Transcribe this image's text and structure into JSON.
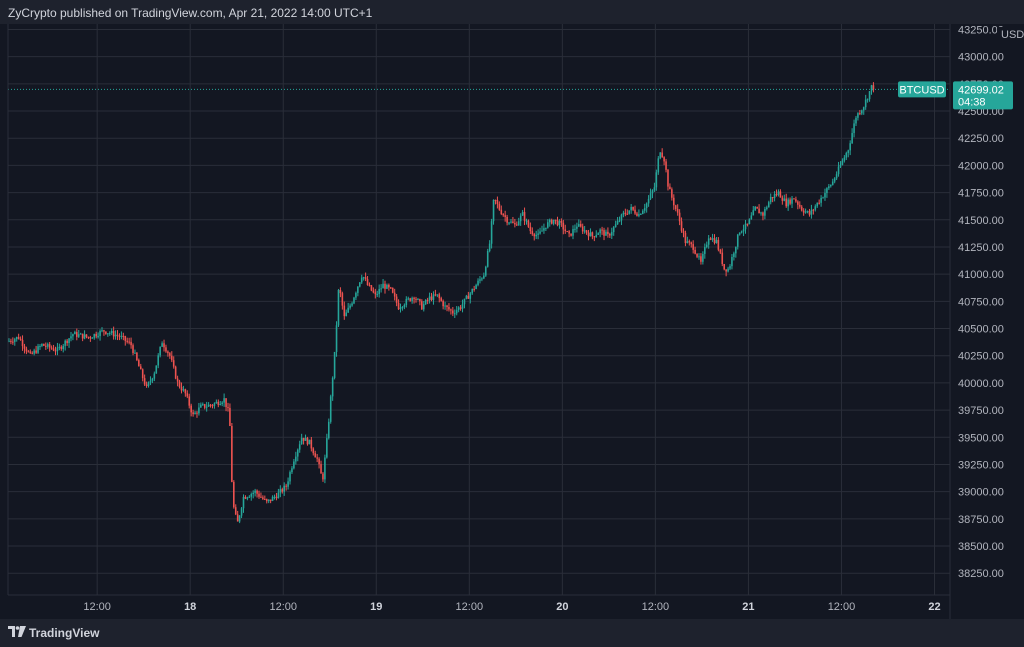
{
  "header": {
    "text": "ZyCrypto published on TradingView.com, Apr 21, 2022 14:00 UTC+1"
  },
  "footer": {
    "brand": "TradingView"
  },
  "colors": {
    "background": "#131722",
    "grid": "#2a2e39",
    "up": "#26a69a",
    "down": "#ef5350",
    "price_label_bg": "#26a69a",
    "axis_text": "#b2b5be"
  },
  "chart_data": {
    "type": "candlestick",
    "symbol": "BTCUSD",
    "currency": "USD",
    "last_price": "42699.02",
    "countdown": "04:38",
    "ylim": [
      38050,
      43300
    ],
    "y_ticks": [
      "38250.00",
      "38500.00",
      "38750.00",
      "39000.00",
      "39250.00",
      "39500.00",
      "39750.00",
      "40000.00",
      "40250.00",
      "40500.00",
      "40750.00",
      "41000.00",
      "41250.00",
      "41500.00",
      "41750.00",
      "42000.00",
      "42250.00",
      "42500.00",
      "42750.00",
      "43000.00",
      "43250.00"
    ],
    "x_ticks": [
      {
        "label": "12:00",
        "hour": 12,
        "bold": false
      },
      {
        "label": "18",
        "hour": 24,
        "bold": true
      },
      {
        "label": "12:00",
        "hour": 36,
        "bold": false
      },
      {
        "label": "19",
        "hour": 48,
        "bold": true
      },
      {
        "label": "12:00",
        "hour": 60,
        "bold": false
      },
      {
        "label": "20",
        "hour": 72,
        "bold": true
      },
      {
        "label": "12:00",
        "hour": 84,
        "bold": false
      },
      {
        "label": "21",
        "hour": 96,
        "bold": true
      },
      {
        "label": "12:00",
        "hour": 108,
        "bold": false
      },
      {
        "label": "22",
        "hour": 120,
        "bold": true
      }
    ],
    "xlim_hours": [
      0.5,
      122
    ],
    "price_path": [
      [
        0.5,
        40380
      ],
      [
        2,
        40420
      ],
      [
        3.5,
        40250
      ],
      [
        5,
        40350
      ],
      [
        7,
        40300
      ],
      [
        9,
        40450
      ],
      [
        11,
        40420
      ],
      [
        13,
        40480
      ],
      [
        15,
        40430
      ],
      [
        16.5,
        40350
      ],
      [
        17.5,
        40150
      ],
      [
        18.5,
        39950
      ],
      [
        19.5,
        40100
      ],
      [
        20.5,
        40380
      ],
      [
        21.5,
        40250
      ],
      [
        22.5,
        40000
      ],
      [
        23.5,
        39900
      ],
      [
        24.5,
        39700
      ],
      [
        25.5,
        39780
      ],
      [
        27,
        39800
      ],
      [
        28.5,
        39850
      ],
      [
        29.2,
        39700
      ],
      [
        29.6,
        38900
      ],
      [
        30.2,
        38700
      ],
      [
        31,
        38950
      ],
      [
        32.5,
        39000
      ],
      [
        34,
        38900
      ],
      [
        35.5,
        38980
      ],
      [
        36.5,
        39050
      ],
      [
        37.5,
        39300
      ],
      [
        38.5,
        39500
      ],
      [
        39.5,
        39450
      ],
      [
        40.5,
        39300
      ],
      [
        41.2,
        39100
      ],
      [
        41.8,
        39500
      ],
      [
        42.3,
        39900
      ],
      [
        42.8,
        40300
      ],
      [
        43.3,
        40900
      ],
      [
        44,
        40600
      ],
      [
        45,
        40750
      ],
      [
        46.3,
        41000
      ],
      [
        47,
        40900
      ],
      [
        48,
        40800
      ],
      [
        49,
        40900
      ],
      [
        50,
        40850
      ],
      [
        51,
        40700
      ],
      [
        52,
        40750
      ],
      [
        53,
        40800
      ],
      [
        54,
        40700
      ],
      [
        55,
        40780
      ],
      [
        56,
        40800
      ],
      [
        57,
        40700
      ],
      [
        58,
        40650
      ],
      [
        59,
        40700
      ],
      [
        60,
        40800
      ],
      [
        61,
        40900
      ],
      [
        62,
        41000
      ],
      [
        62.8,
        41300
      ],
      [
        63.3,
        41700
      ],
      [
        64,
        41600
      ],
      [
        65,
        41500
      ],
      [
        66,
        41450
      ],
      [
        67,
        41550
      ],
      [
        68,
        41400
      ],
      [
        69,
        41350
      ],
      [
        70,
        41450
      ],
      [
        71,
        41500
      ],
      [
        72,
        41450
      ],
      [
        73,
        41350
      ],
      [
        74,
        41450
      ],
      [
        75,
        41400
      ],
      [
        76,
        41350
      ],
      [
        77,
        41400
      ],
      [
        78,
        41350
      ],
      [
        79,
        41450
      ],
      [
        80,
        41550
      ],
      [
        81,
        41600
      ],
      [
        82,
        41550
      ],
      [
        83,
        41650
      ],
      [
        84,
        41800
      ],
      [
        84.7,
        42150
      ],
      [
        85.3,
        42050
      ],
      [
        85.8,
        41800
      ],
      [
        86.5,
        41650
      ],
      [
        87,
        41550
      ],
      [
        88,
        41300
      ],
      [
        89,
        41250
      ],
      [
        90,
        41100
      ],
      [
        91,
        41350
      ],
      [
        92,
        41300
      ],
      [
        93,
        41050
      ],
      [
        93.6,
        41050
      ],
      [
        94,
        41150
      ],
      [
        95,
        41400
      ],
      [
        96,
        41450
      ],
      [
        97,
        41600
      ],
      [
        98,
        41550
      ],
      [
        99,
        41700
      ],
      [
        100,
        41750
      ],
      [
        101,
        41650
      ],
      [
        102,
        41700
      ],
      [
        103,
        41600
      ],
      [
        104,
        41550
      ],
      [
        105,
        41650
      ],
      [
        106,
        41750
      ],
      [
        107,
        41850
      ],
      [
        108,
        42000
      ],
      [
        109,
        42150
      ],
      [
        110,
        42450
      ],
      [
        111,
        42550
      ],
      [
        112,
        42720
      ]
    ]
  }
}
